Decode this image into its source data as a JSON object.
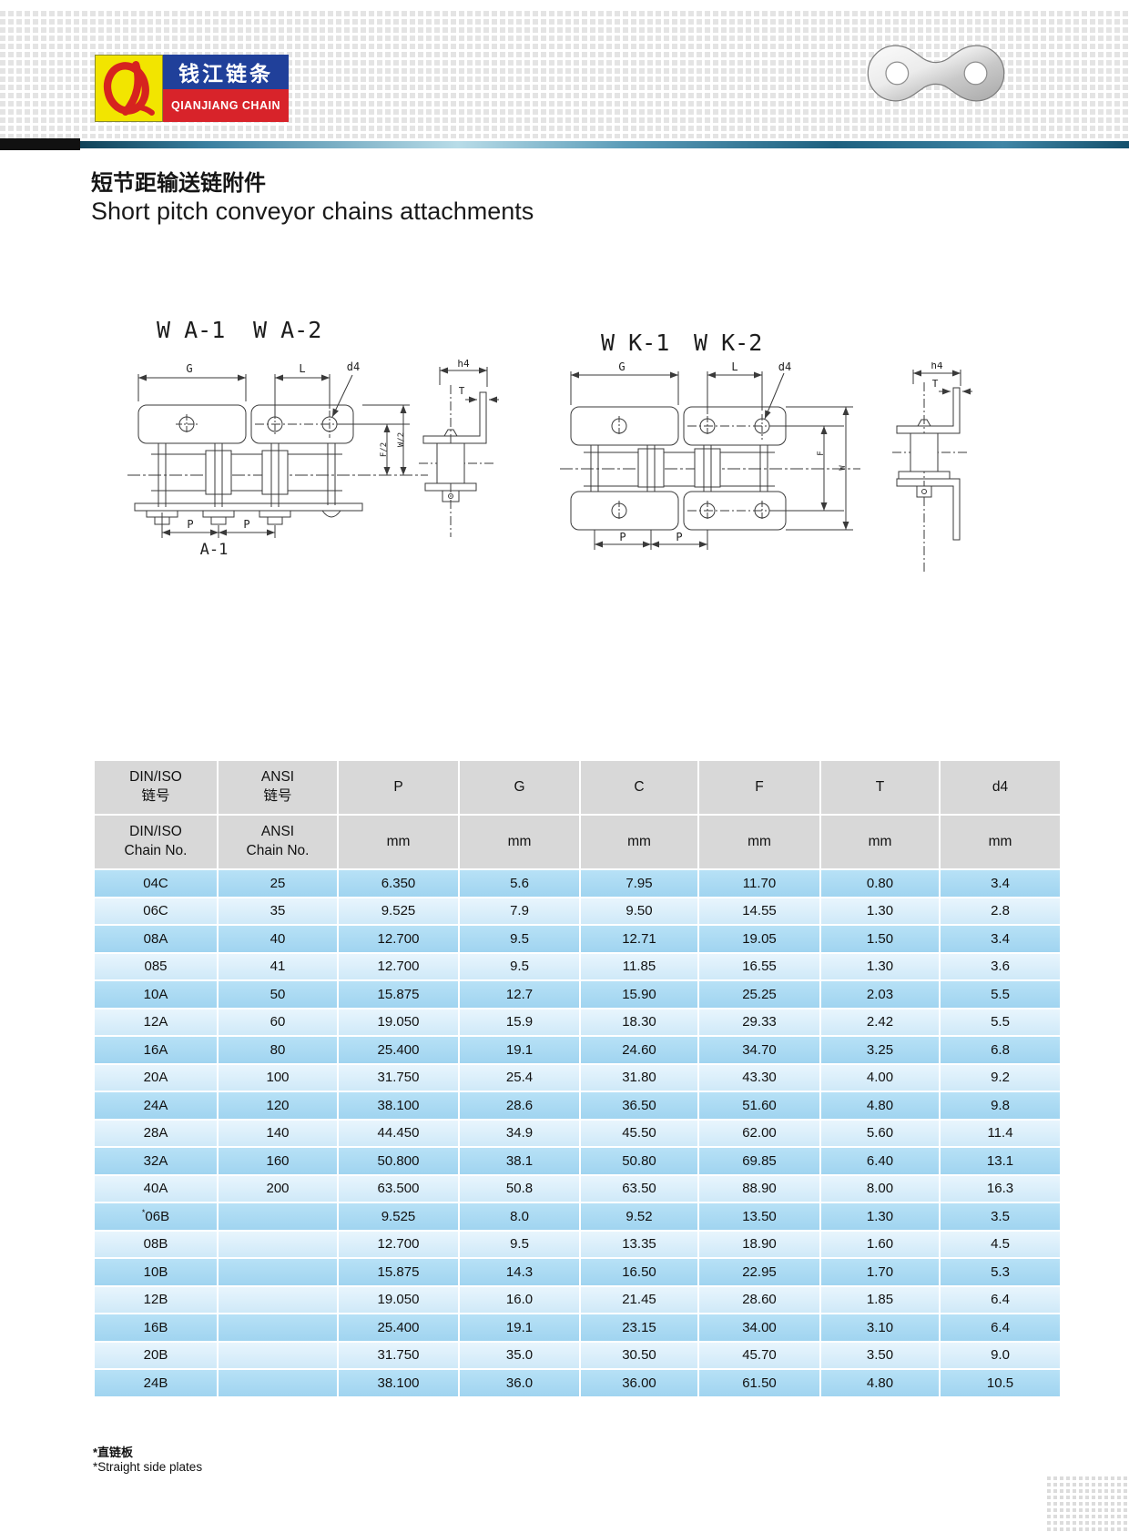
{
  "logo": {
    "monogram": "QL",
    "name_cn": "钱江链条",
    "name_en": "QIANJIANG CHAIN"
  },
  "title": {
    "cn": "短节距输送链附件",
    "en": "Short pitch conveyor chains attachments"
  },
  "drawings": {
    "left": {
      "label_1": "W A-1",
      "label_2": "W A-2",
      "caption": "A-1"
    },
    "right": {
      "label_1": "W K-1",
      "label_2": "W K-2"
    },
    "dims": {
      "g": "G",
      "l": "L",
      "d4": "d4",
      "h4": "h4",
      "t": "T",
      "f2": "F/2",
      "w2": "W/2",
      "p": "P",
      "f": "F",
      "w": "W"
    }
  },
  "table": {
    "header": {
      "din_iso_l1": "DIN/ISO",
      "din_iso_l2": "链号",
      "ansi_l1": "ANSI",
      "ansi_l2": "链号",
      "din_iso_sub_l1": "DIN/ISO",
      "din_iso_sub_l2": "Chain No.",
      "ansi_sub_l1": "ANSI",
      "ansi_sub_l2": "Chain No.",
      "p": "P",
      "g": "G",
      "c": "C",
      "f": "F",
      "t": "T",
      "d4": "d4",
      "unit": "mm"
    },
    "rows": [
      [
        "04C",
        "25",
        "6.350",
        "5.6",
        "7.95",
        "11.70",
        "0.80",
        "3.4"
      ],
      [
        "06C",
        "35",
        "9.525",
        "7.9",
        "9.50",
        "14.55",
        "1.30",
        "2.8"
      ],
      [
        "08A",
        "40",
        "12.700",
        "9.5",
        "12.71",
        "19.05",
        "1.50",
        "3.4"
      ],
      [
        "085",
        "41",
        "12.700",
        "9.5",
        "11.85",
        "16.55",
        "1.30",
        "3.6"
      ],
      [
        "10A",
        "50",
        "15.875",
        "12.7",
        "15.90",
        "25.25",
        "2.03",
        "5.5"
      ],
      [
        "12A",
        "60",
        "19.050",
        "15.9",
        "18.30",
        "29.33",
        "2.42",
        "5.5"
      ],
      [
        "16A",
        "80",
        "25.400",
        "19.1",
        "24.60",
        "34.70",
        "3.25",
        "6.8"
      ],
      [
        "20A",
        "100",
        "31.750",
        "25.4",
        "31.80",
        "43.30",
        "4.00",
        "9.2"
      ],
      [
        "24A",
        "120",
        "38.100",
        "28.6",
        "36.50",
        "51.60",
        "4.80",
        "9.8"
      ],
      [
        "28A",
        "140",
        "44.450",
        "34.9",
        "45.50",
        "62.00",
        "5.60",
        "11.4"
      ],
      [
        "32A",
        "160",
        "50.800",
        "38.1",
        "50.80",
        "69.85",
        "6.40",
        "13.1"
      ],
      [
        "40A",
        "200",
        "63.500",
        "50.8",
        "63.50",
        "88.90",
        "8.00",
        "16.3"
      ],
      [
        "*06B",
        "",
        "9.525",
        "8.0",
        "9.52",
        "13.50",
        "1.30",
        "3.5"
      ],
      [
        "08B",
        "",
        "12.700",
        "9.5",
        "13.35",
        "18.90",
        "1.60",
        "4.5"
      ],
      [
        "10B",
        "",
        "15.875",
        "14.3",
        "16.50",
        "22.95",
        "1.70",
        "5.3"
      ],
      [
        "12B",
        "",
        "19.050",
        "16.0",
        "21.45",
        "28.60",
        "1.85",
        "6.4"
      ],
      [
        "16B",
        "",
        "25.400",
        "19.1",
        "23.15",
        "34.00",
        "3.10",
        "6.4"
      ],
      [
        "20B",
        "",
        "31.750",
        "35.0",
        "30.50",
        "45.70",
        "3.50",
        "9.0"
      ],
      [
        "24B",
        "",
        "38.100",
        "36.0",
        "36.00",
        "61.50",
        "4.80",
        "10.5"
      ]
    ]
  },
  "footnotes": {
    "cn": "*直链板",
    "en": "*Straight side plates"
  },
  "colors": {
    "row_dark": "#a0d4f0",
    "row_light": "#cfe9f8",
    "header_gray": "#d8d8d8",
    "logo_yellow": "#f2e500",
    "logo_blue": "#20409a",
    "logo_red": "#d8232a",
    "accent_bar": "#2a7294"
  }
}
